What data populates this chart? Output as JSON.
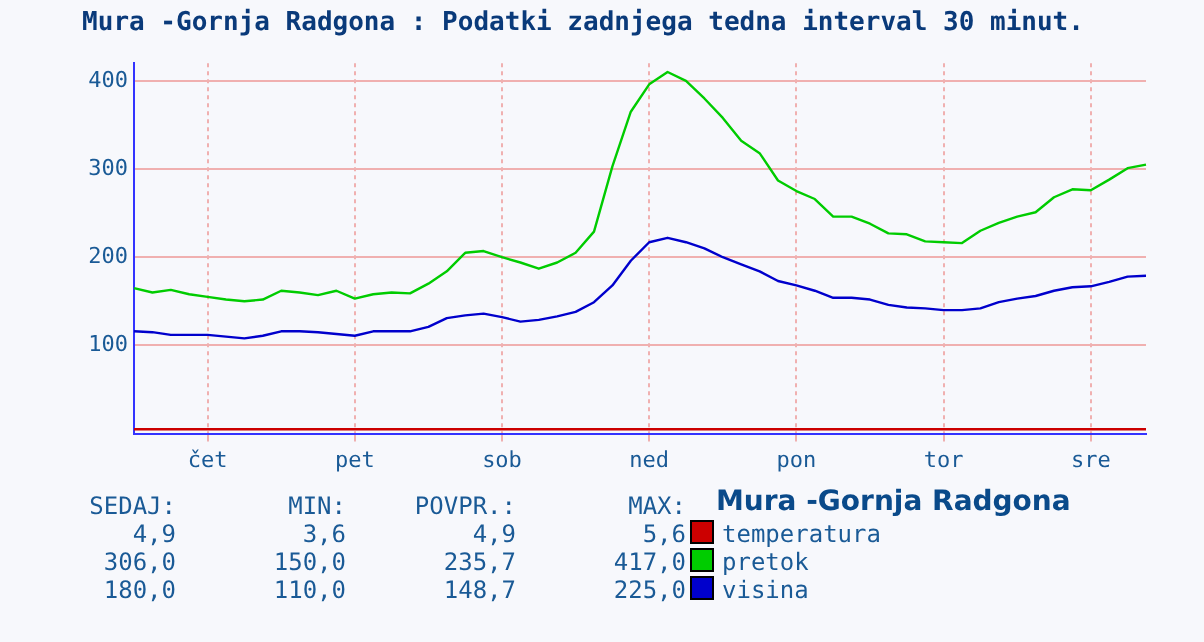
{
  "chart_data": {
    "type": "line",
    "title": "Mura -Gornja Radgona : Podatki zadnjega tedna interval 30 minut.",
    "legend_title": "Mura -Gornja Radgona",
    "legend": "bottom",
    "grid": true,
    "marker": "none",
    "line_style": "solid",
    "categories": [
      null,
      null,
      null,
      null,
      "čet",
      null,
      null,
      null,
      null,
      null,
      null,
      null,
      "pet",
      null,
      null,
      null,
      null,
      null,
      null,
      null,
      "sob",
      null,
      null,
      null,
      null,
      null,
      null,
      null,
      "ned",
      null,
      null,
      null,
      null,
      null,
      null,
      null,
      "pon",
      null,
      null,
      null,
      null,
      null,
      null,
      null,
      "tor",
      null,
      null,
      null,
      null,
      null,
      null,
      null,
      "sre",
      null,
      null,
      null
    ],
    "ylim": [
      0,
      420
    ],
    "yticks": [
      100,
      200,
      300,
      400
    ],
    "annotations": [
      "SEDAJ:",
      "MIN:",
      "POVPR.:",
      "MAX:",
      "4,9",
      "3,6",
      "4,9",
      "5,6",
      "306,0",
      "150,0",
      "235,7",
      "417,0",
      "180,0",
      "110,0",
      "148,7",
      "225,0"
    ],
    "series": [
      {
        "name": "temperatura",
        "color": "#cc0000",
        "values": [
          5,
          5,
          5,
          5,
          5,
          5,
          5,
          5,
          5,
          5,
          5,
          5,
          5,
          5,
          5,
          5,
          5,
          5,
          5,
          5,
          5,
          5,
          5,
          5,
          5,
          5,
          5,
          5,
          5,
          5,
          5,
          5,
          5,
          5,
          5,
          5,
          5,
          5,
          5,
          5,
          5,
          5,
          5,
          5,
          5,
          5,
          5,
          5,
          5,
          5,
          5,
          5,
          5,
          5,
          5,
          5
        ]
      },
      {
        "name": "pretok",
        "color": "#00cc00",
        "values": [
          165,
          160,
          163,
          158,
          155,
          152,
          150,
          152,
          162,
          160,
          157,
          162,
          153,
          158,
          160,
          159,
          170,
          184,
          205,
          207,
          200,
          194,
          187,
          194,
          205,
          229,
          303,
          365,
          396,
          410,
          400,
          380,
          358,
          332,
          318,
          287,
          275,
          266,
          246,
          246,
          238,
          227,
          226,
          218,
          217,
          216,
          230,
          239,
          246,
          251,
          268,
          277,
          276,
          288,
          301,
          305
        ]
      },
      {
        "name": "visina",
        "color": "#0000cc",
        "values": [
          116,
          115,
          112,
          112,
          112,
          110,
          108,
          111,
          116,
          116,
          115,
          113,
          111,
          116,
          116,
          116,
          121,
          131,
          134,
          136,
          132,
          127,
          129,
          133,
          138,
          149,
          168,
          196,
          217,
          222,
          217,
          210,
          200,
          192,
          184,
          173,
          168,
          162,
          154,
          154,
          152,
          146,
          143,
          142,
          140,
          140,
          142,
          149,
          153,
          156,
          162,
          166,
          167,
          172,
          178,
          179
        ]
      }
    ]
  }
}
